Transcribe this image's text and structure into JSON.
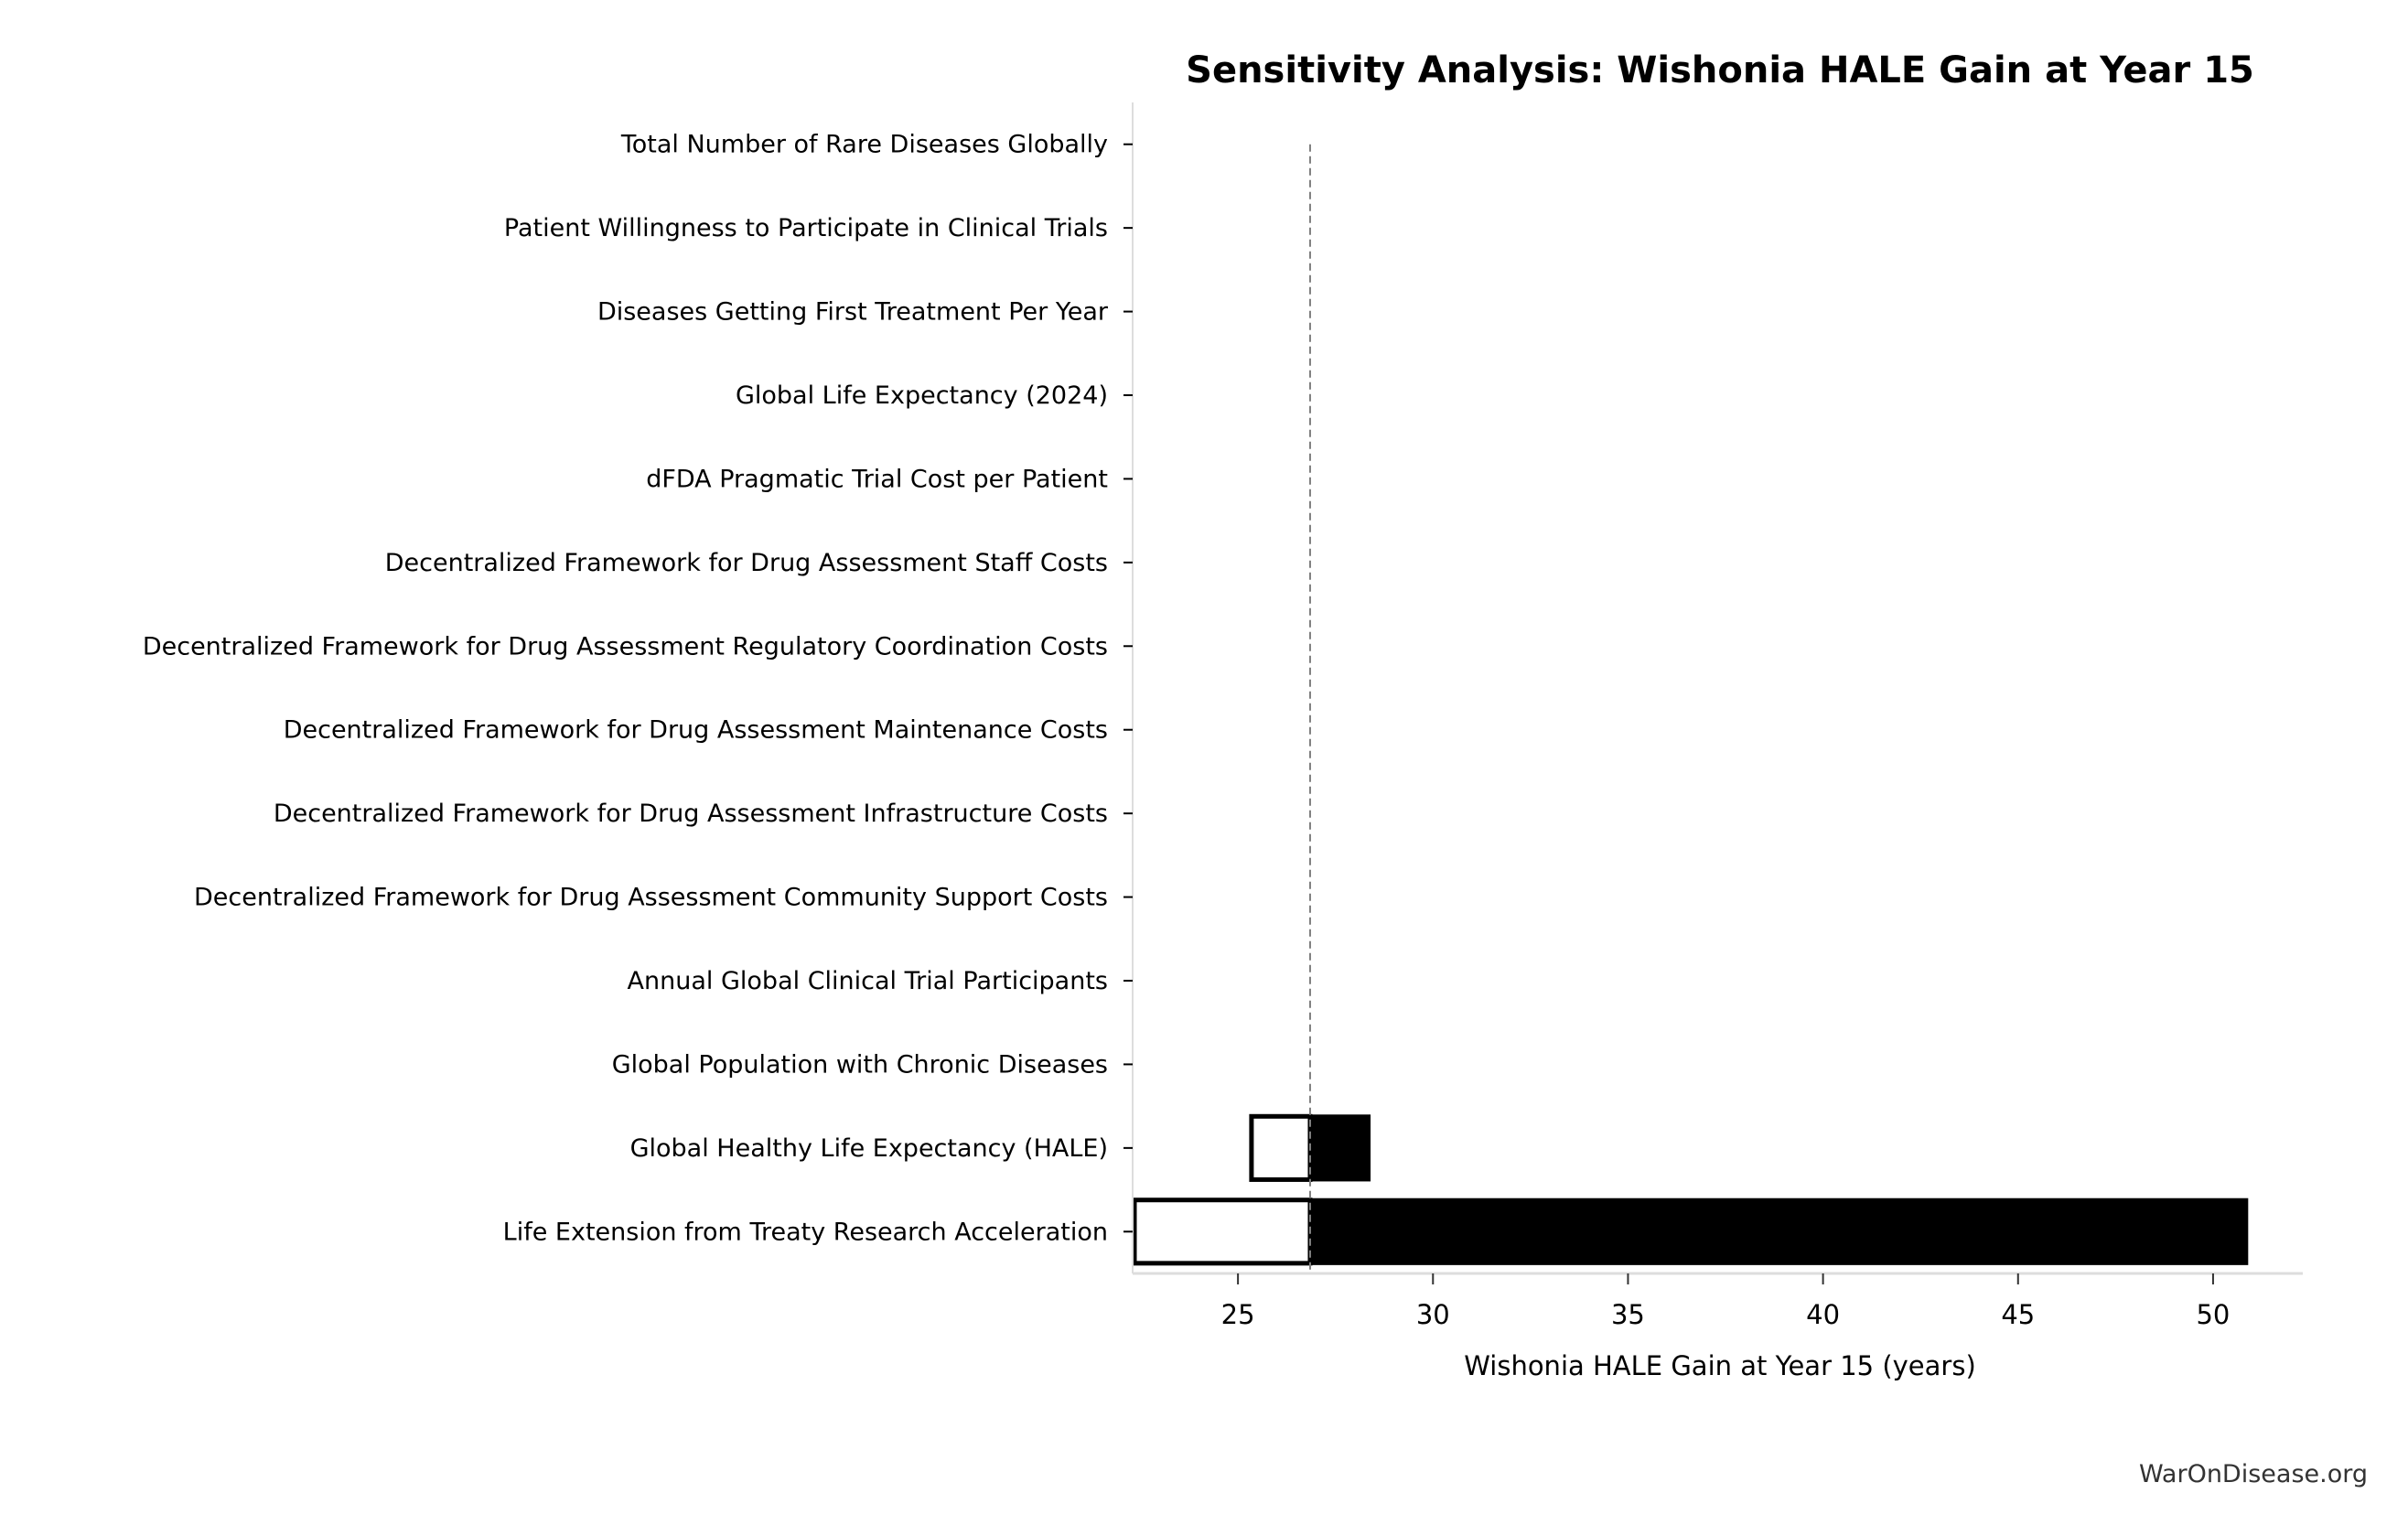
{
  "chart_data": {
    "type": "tornado",
    "title": "Sensitivity Analysis: Wishonia HALE Gain at Year 15",
    "xlabel": "Wishonia HALE Gain at Year 15 (years)",
    "ylabel": "",
    "xlim": [
      22.3,
      52.3
    ],
    "xticks": [
      25,
      30,
      35,
      40,
      45,
      50
    ],
    "baseline": 26.85,
    "grid": false,
    "colors": {
      "low_fill": "#ffffff",
      "high_fill": "#000000",
      "edge": "#000000",
      "baseline_line": "#808080",
      "spine": "#dddddd"
    },
    "parameters": [
      {
        "label": "Total Number of Rare Diseases Globally",
        "low": 26.85,
        "high": 26.85
      },
      {
        "label": "Patient Willingness to Participate in Clinical Trials",
        "low": 26.85,
        "high": 26.85
      },
      {
        "label": "Diseases Getting First Treatment Per Year",
        "low": 26.85,
        "high": 26.85
      },
      {
        "label": "Global Life Expectancy (2024)",
        "low": 26.85,
        "high": 26.85
      },
      {
        "label": "dFDA Pragmatic Trial Cost per Patient",
        "low": 26.85,
        "high": 26.85
      },
      {
        "label": "Decentralized Framework for Drug Assessment Staff Costs",
        "low": 26.85,
        "high": 26.85
      },
      {
        "label": "Decentralized Framework for Drug Assessment Regulatory Coordination Costs",
        "low": 26.85,
        "high": 26.85
      },
      {
        "label": "Decentralized Framework for Drug Assessment Maintenance Costs",
        "low": 26.85,
        "high": 26.85
      },
      {
        "label": "Decentralized Framework for Drug Assessment Infrastructure Costs",
        "low": 26.85,
        "high": 26.85
      },
      {
        "label": "Decentralized Framework for Drug Assessment Community Support Costs",
        "low": 26.85,
        "high": 26.85
      },
      {
        "label": "Annual Global Clinical Trial Participants",
        "low": 26.85,
        "high": 26.85
      },
      {
        "label": "Global Population with Chronic Diseases",
        "low": 26.85,
        "high": 26.85
      },
      {
        "label": "Global Healthy Life Expectancy (HALE)",
        "low": 25.3,
        "high": 28.4
      },
      {
        "label": "Life Extension from Treaty Research Acceleration",
        "low": 22.3,
        "high": 50.9
      }
    ]
  },
  "footer": {
    "watermark": "WarOnDisease.org"
  }
}
